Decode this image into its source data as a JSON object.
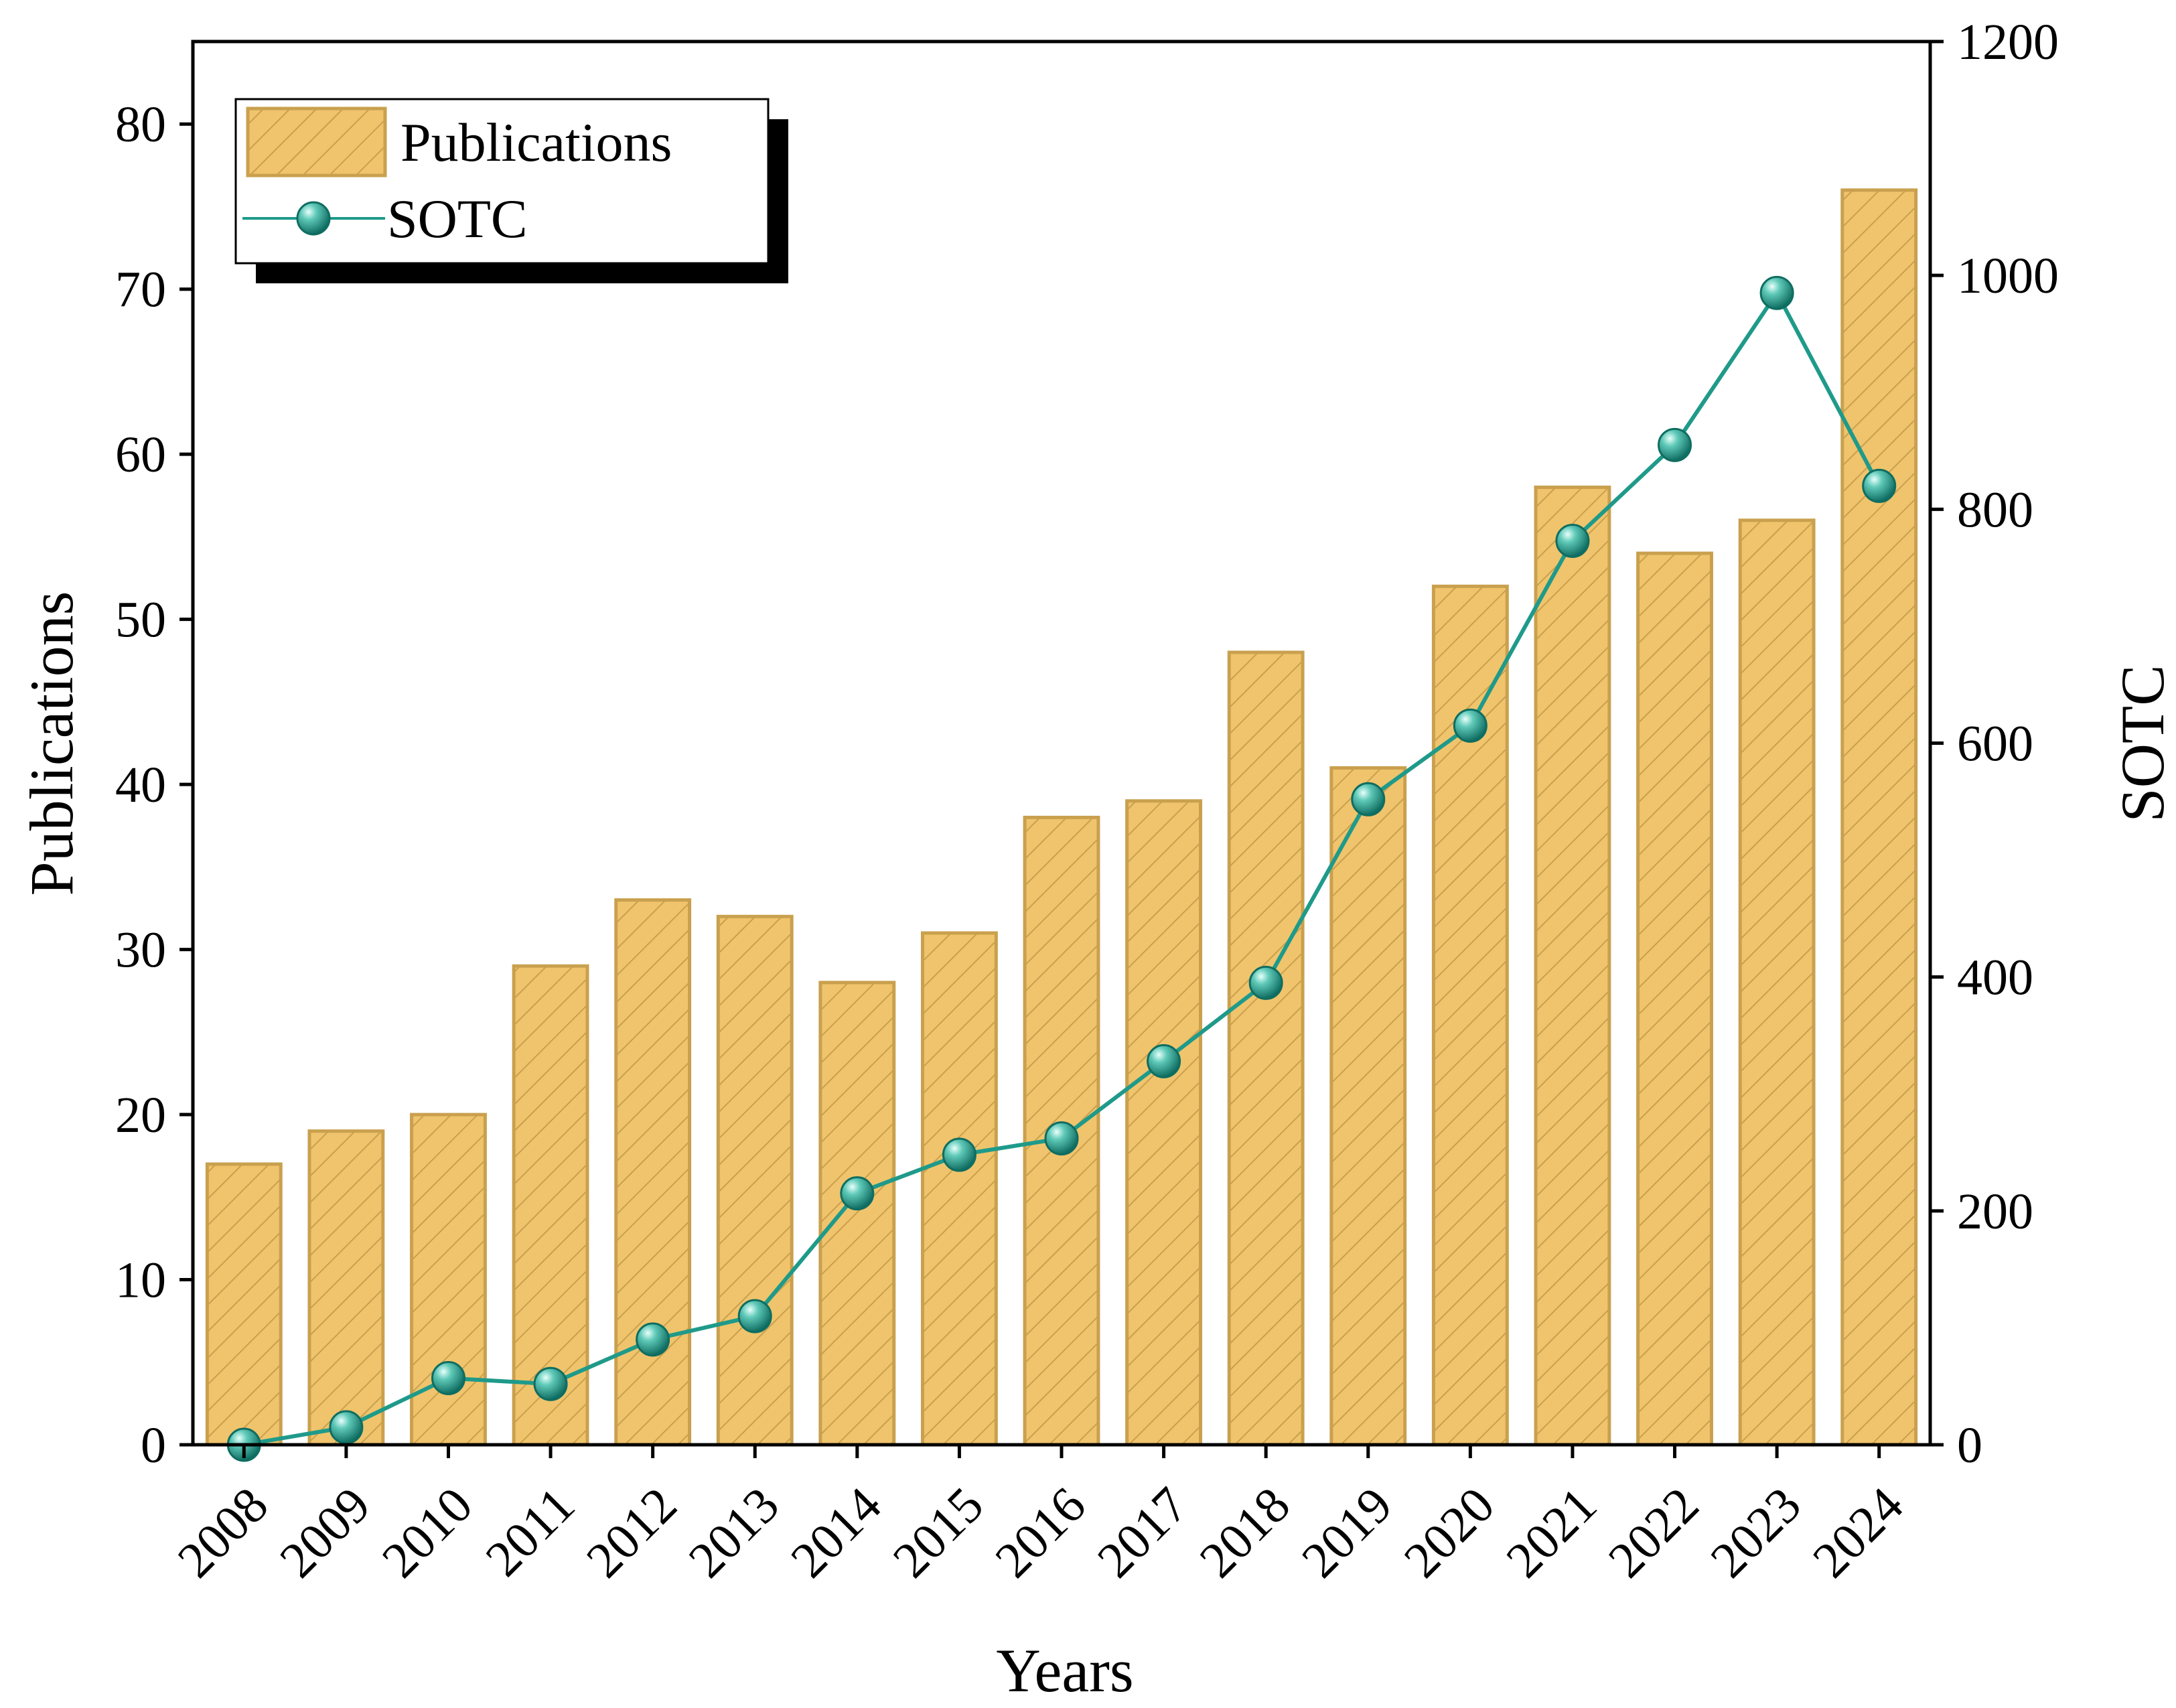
{
  "chart_data": {
    "type": "bar",
    "title": "",
    "xlabel": "Years",
    "ylabel": "Publications",
    "y2label": "SOTC",
    "categories": [
      "2008",
      "2009",
      "2010",
      "2011",
      "2012",
      "2013",
      "2014",
      "2015",
      "2016",
      "2017",
      "2018",
      "2019",
      "2020",
      "2021",
      "2022",
      "2023",
      "2024"
    ],
    "ylim": [
      0,
      85
    ],
    "y2lim": [
      0,
      1200
    ],
    "yticks": [
      0,
      10,
      20,
      30,
      40,
      50,
      60,
      70,
      80
    ],
    "y2ticks": [
      0,
      200,
      400,
      600,
      800,
      1000,
      1200
    ],
    "grid": false,
    "legend": {
      "position": "top-left",
      "entries": [
        "Publications",
        "SOTC"
      ]
    },
    "series": [
      {
        "name": "Publications",
        "type": "bar",
        "axis": "left",
        "color": "#f0c46c",
        "edge_color": "#c9a04e",
        "pattern": "diagonal-hatch",
        "values": [
          17,
          19,
          20,
          29,
          33,
          32,
          28,
          31,
          38,
          39,
          48,
          41,
          52,
          58,
          54,
          56,
          76
        ]
      },
      {
        "name": "SOTC",
        "type": "line",
        "axis": "right",
        "color": "#1f9a8a",
        "marker": "sphere",
        "values": [
          0,
          15,
          57,
          52,
          90,
          110,
          215,
          248,
          262,
          328,
          395,
          552,
          615,
          773,
          855,
          985,
          820
        ]
      }
    ]
  }
}
